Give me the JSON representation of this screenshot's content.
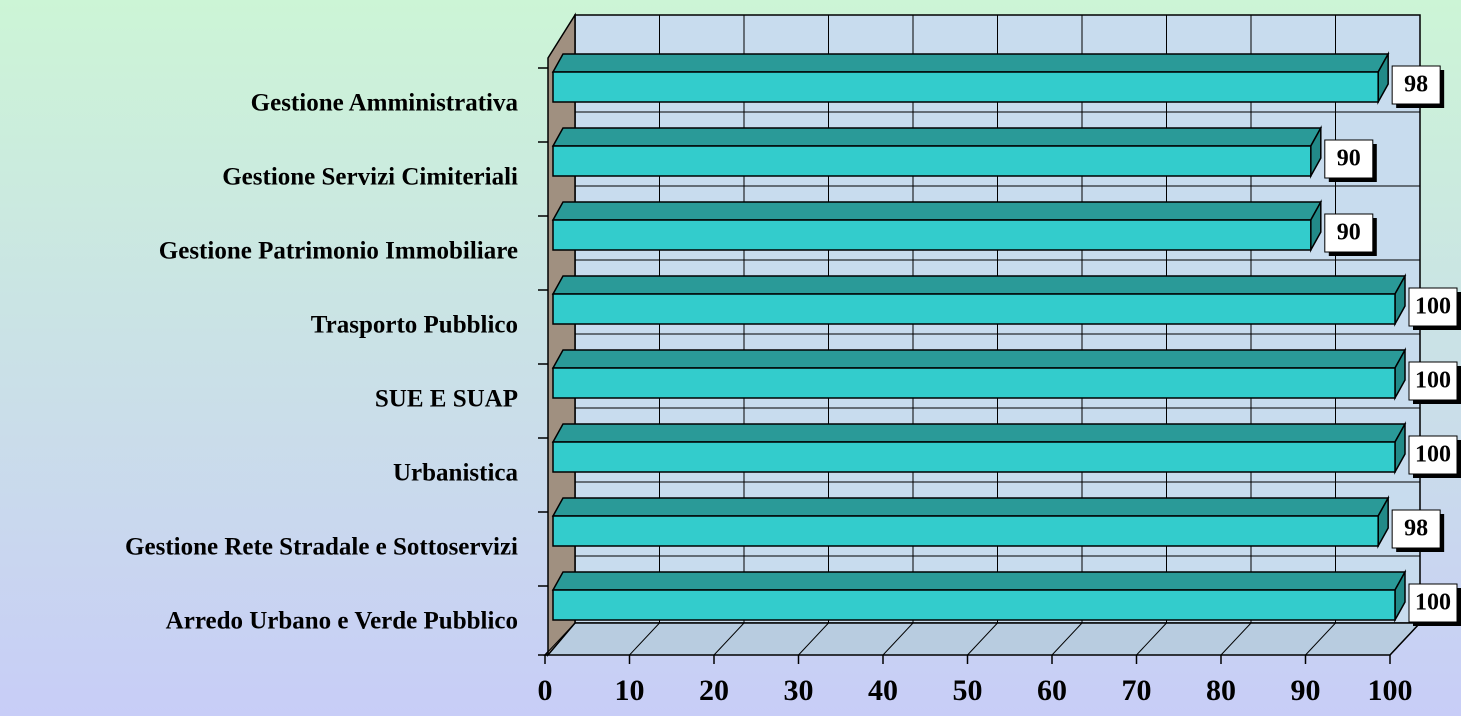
{
  "chart_data": {
    "type": "bar3d_horizontal",
    "categories": [
      "Gestione Amministrativa",
      "Gestione Servizi Cimiteriali",
      "Gestione Patrimonio Immobiliare",
      "Trasporto Pubblico",
      "SUE E SUAP",
      "Urbanistica",
      "Gestione Rete Stradale e Sottoservizi",
      "Arredo Urbano e Verde Pubblico"
    ],
    "values": [
      98,
      90,
      90,
      100,
      100,
      100,
      98,
      100
    ],
    "color": "#33cccc",
    "xlim": [
      0,
      100
    ],
    "xticks": [
      0,
      10,
      20,
      30,
      40,
      50,
      60,
      70,
      80,
      90,
      100
    ],
    "grid": true
  }
}
